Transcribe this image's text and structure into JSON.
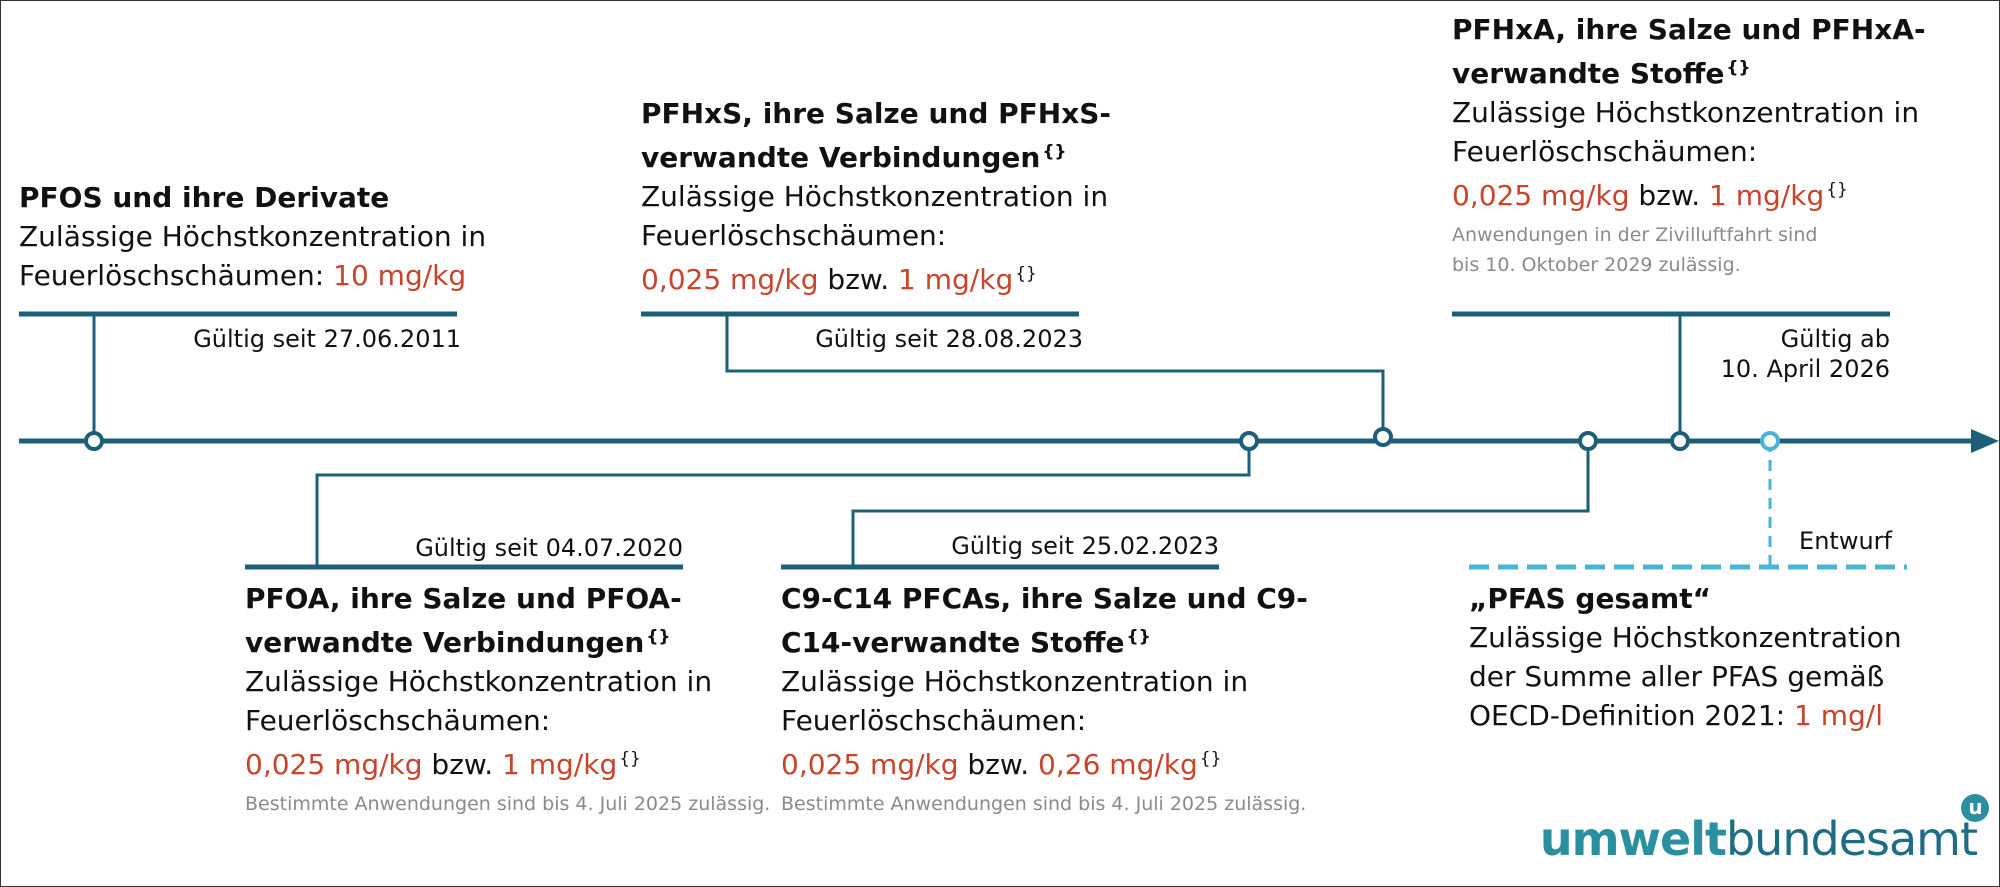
{
  "entries": [
    {
      "title": "PFOS und ihre Derivate",
      "text_a": "Zulässige Höchstkonzentration in",
      "text_b": "Feuerlöschschäumen: ",
      "value": "10 mg/kg",
      "valid": "Gültig seit 27.06.2011"
    },
    {
      "title_a": "PFHxS, ihre Salze und PFHxS-",
      "title_b": "verwandte Verbindungen",
      "text_a": "Zulässige Höchstkonzentration in",
      "text_b": "Feuerlöschschäumen:",
      "value_1": "0,025 mg/kg",
      "sep": " bzw. ",
      "value_2": "1 mg/kg",
      "valid": "Gültig seit 28.08.2023"
    },
    {
      "title_a": "PFHxA, ihre Salze und PFHxA-",
      "title_b": "verwandte Stoffe",
      "text_a": "Zulässige Höchstkonzentration in",
      "text_b": "Feuerlöschschäumen:",
      "value_1": "0,025 mg/kg",
      "sep": " bzw. ",
      "value_2": "1 mg/kg",
      "note_a": "Anwendungen in der Zivilluftfahrt sind",
      "note_b": "bis 10. Oktober 2029 zulässig.",
      "valid_a": "Gültig ab",
      "valid_b": "10. April 2026"
    },
    {
      "title_a": "PFOA, ihre Salze und PFOA-",
      "title_b": "verwandte Verbindungen",
      "text_a": "Zulässige Höchstkonzentration in",
      "text_b": "Feuerlöschschäumen:",
      "value_1": "0,025 mg/kg",
      "sep": " bzw. ",
      "value_2": "1 mg/kg",
      "note": "Bestimmte Anwendungen sind bis 4. Juli 2025 zulässig.",
      "valid": "Gültig seit 04.07.2020"
    },
    {
      "title_a": "C9-C14 PFCAs, ihre Salze und C9-",
      "title_b": "C14-verwandte Stoffe",
      "text_a": "Zulässige Höchstkonzentration in",
      "text_b": "Feuerlöschschäumen:",
      "value_1": "0,025 mg/kg",
      "sep": " bzw. ",
      "value_2": "0,26 mg/kg",
      "note": "Bestimmte Anwendungen sind bis 4. Juli 2025 zulässig.",
      "valid": "Gültig seit 25.02.2023"
    },
    {
      "title": "„PFAS gesamt“",
      "text_a": "Zulässige Höchstkonzentration",
      "text_b": "der Summe aller PFAS gemäß",
      "text_c": "OECD-Definition 2021: ",
      "value": "1 mg/l",
      "status": "Entwurf"
    }
  ],
  "footnote_marker": "{}",
  "logo": {
    "part_bold": "umwelt",
    "part_regular": "bundesamt",
    "badge": "u"
  },
  "colors": {
    "timeline": "#1d5f78",
    "draft": "#4bb3d6",
    "value_red": "#c8442b",
    "note_grey": "#8a8a8a"
  }
}
